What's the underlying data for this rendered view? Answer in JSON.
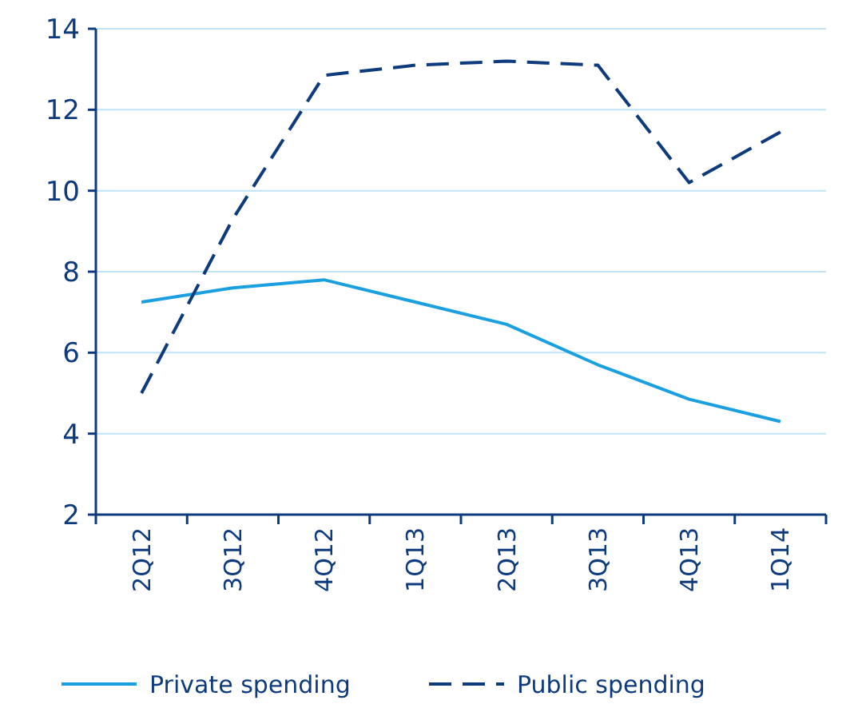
{
  "chart_data": {
    "type": "line",
    "categories": [
      "2Q12",
      "3Q12",
      "4Q12",
      "1Q13",
      "2Q13",
      "3Q13",
      "4Q13",
      "1Q14"
    ],
    "series": [
      {
        "name": "Private spending",
        "color": "#1aa0e0",
        "line_style": "solid",
        "values": [
          7.25,
          7.6,
          7.8,
          7.25,
          6.7,
          5.7,
          4.85,
          4.3
        ]
      },
      {
        "name": "Public spending",
        "color": "#0d3b7d",
        "line_style": "dashed",
        "values": [
          5.0,
          9.3,
          12.85,
          13.1,
          13.2,
          13.1,
          10.2,
          11.45
        ]
      }
    ],
    "ylim": [
      2,
      14
    ],
    "yticks": [
      2,
      4,
      6,
      8,
      10,
      12,
      14
    ],
    "grid": "y",
    "legend": "bottom",
    "marker": "none"
  }
}
